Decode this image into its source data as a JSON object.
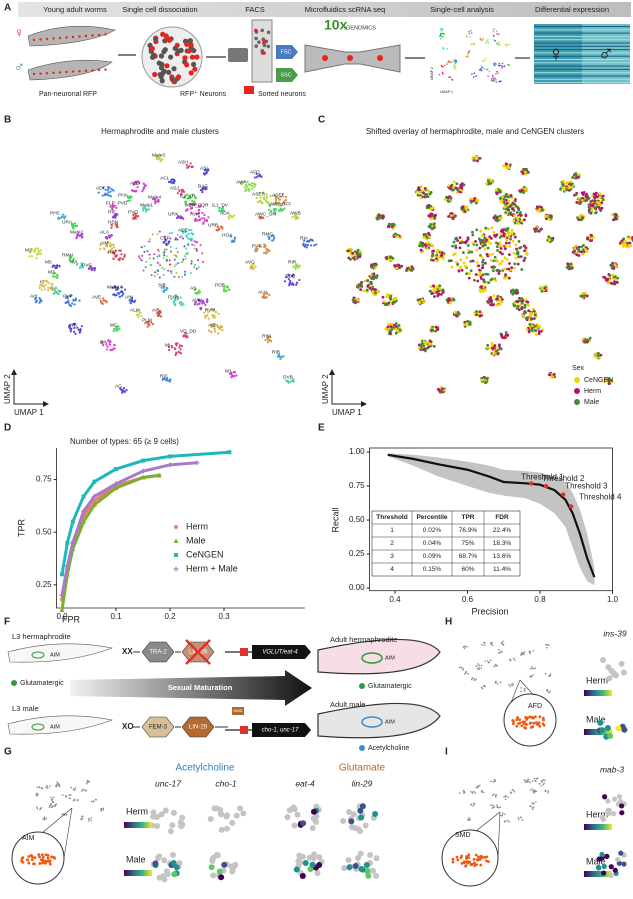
{
  "panel_letters": [
    "A",
    "B",
    "C",
    "D",
    "E",
    "F",
    "G",
    "H",
    "I"
  ],
  "workflow": {
    "steps": [
      "Young adult worms",
      "Single cell dissociation",
      "FACS",
      "Microfluidics scRNA seq",
      "Single-cell analysis",
      "Differential expression"
    ],
    "herm_symbol": "♀",
    "male_symbol": "♂",
    "pan_neuronal": "Pan-neuronal RFP",
    "rfp_neurons": "RFP⁺ Neurons",
    "sorted": "Sorted neurons",
    "fsc": "FSC",
    "ssc": "SSC",
    "tenx": "10x",
    "genomics": "GENOMICS",
    "umap1": "UMAP 1",
    "umap2": "UMAP 2"
  },
  "B": {
    "title": "Hermaphrodite and male clusters",
    "clusters": [
      "Male3",
      "ASH",
      "ASI",
      "AFD",
      "ACL",
      "ASG",
      "ASJ",
      "BAG",
      "AWA",
      "ADF",
      "PHA",
      "Male4",
      "IL2_LR",
      "ASER",
      "ASEL",
      "FLP_PVD",
      "Male1",
      "AQR_PQR",
      "IL1_DV",
      "AWC_OFF",
      "PHC",
      "RIF",
      "PVQ",
      "URX",
      "AVH",
      "ADA",
      "AWC_ON",
      "AWB",
      "URA",
      "HSN",
      "URB",
      "HOA",
      "RMG",
      "Male2",
      "ALA",
      "ADE",
      "CEP",
      "RIA",
      "AIM",
      "PVT",
      "M2",
      "RIP",
      "RMH",
      "AVL",
      "M5",
      "PVC",
      "AVG",
      "RIR",
      "I5",
      "M3",
      "AIA",
      "AIY",
      "Male10",
      "SIB",
      "AS",
      "PDB",
      "SDQ",
      "AUA",
      "PVP",
      "AVE",
      "AIN",
      "PVW",
      "AVM",
      "PVM",
      "AIB",
      "ALM",
      "PLM",
      "VD_DD",
      "MC",
      "AVK",
      "AIZ",
      "RIM",
      "RIV",
      "MI",
      "RIB",
      "RIC",
      "M1",
      "DVB",
      "AG"
    ],
    "umap1": "UMAP 1",
    "umap2": "UMAP 2"
  },
  "C": {
    "title": "Shifted overlay of hermaphrodite, male and CeNGEN clusters",
    "legend_title": "Sex",
    "legend": [
      {
        "name": "CeNGEN",
        "color": "#f2d400"
      },
      {
        "name": "Herm",
        "color": "#b3176b"
      },
      {
        "name": "Male",
        "color": "#3f8a36"
      }
    ],
    "umap1": "UMAP 1",
    "umap2": "UMAP 2"
  },
  "chart_data": [
    {
      "type": "line",
      "annotation": "Number of types: 65 (≥ 9 cells)",
      "x_label": "FPR",
      "y_label": "TPR",
      "xlim": [
        -0.01,
        0.32
      ],
      "ylim": [
        0.14,
        0.9
      ],
      "xticks": [
        {
          "value": 0,
          "label": "0.0"
        },
        0.1,
        0.2,
        0.3
      ],
      "yticks": [
        0.25,
        {
          "value": 0.5,
          "label": "0.50"
        },
        0.75
      ],
      "series": [
        {
          "name": "Herm",
          "color": "#f07a73",
          "marker": "circle",
          "x": [
            0,
            0.01,
            0.02,
            0.04,
            0.06,
            0.1,
            0.15,
            0.18
          ],
          "values": [
            0.18,
            0.33,
            0.45,
            0.58,
            0.65,
            0.72,
            0.76,
            0.77
          ]
        },
        {
          "name": "Male",
          "color": "#7cae2e",
          "marker": "triangle",
          "x": [
            0,
            0.01,
            0.02,
            0.04,
            0.06,
            0.1,
            0.15,
            0.18
          ],
          "values": [
            0.13,
            0.3,
            0.42,
            0.55,
            0.63,
            0.71,
            0.76,
            0.77
          ]
        },
        {
          "name": "CeNGEN",
          "color": "#1fb8b8",
          "marker": "square",
          "x": [
            0,
            0.01,
            0.02,
            0.04,
            0.06,
            0.1,
            0.15,
            0.2,
            0.31
          ],
          "values": [
            0.3,
            0.45,
            0.55,
            0.67,
            0.74,
            0.8,
            0.84,
            0.86,
            0.88
          ]
        },
        {
          "name": "Herm + Male",
          "color": "#a77bc9",
          "marker": "plus",
          "x": [
            0,
            0.01,
            0.02,
            0.04,
            0.06,
            0.1,
            0.15,
            0.2,
            0.25
          ],
          "values": [
            0.2,
            0.34,
            0.45,
            0.6,
            0.67,
            0.73,
            0.79,
            0.82,
            0.83
          ]
        }
      ]
    },
    {
      "type": "ribbon",
      "x_label": "Precision",
      "y_label": "Recall",
      "xlim": [
        0.33,
        1.0
      ],
      "ylim": [
        -0.02,
        1.03
      ],
      "xticks": [
        0.4,
        0.6,
        0.8,
        {
          "value": 1,
          "label": "1.0"
        }
      ],
      "yticks": [
        {
          "value": 0,
          "label": "0.00"
        },
        0.25,
        {
          "value": 0.5,
          "label": "0.50"
        },
        0.75,
        {
          "value": 1,
          "label": "1.00"
        }
      ],
      "series": [
        {
          "color": "#111111",
          "band_color": "#c4c4c4",
          "x": [
            0.38,
            0.45,
            0.52,
            0.6,
            0.66,
            0.7,
            0.76,
            0.8,
            0.84,
            0.87,
            0.89,
            0.91,
            0.93,
            0.95
          ],
          "values": [
            0.98,
            0.95,
            0.91,
            0.87,
            0.82,
            0.78,
            0.77,
            0.76,
            0.72,
            0.65,
            0.55,
            0.4,
            0.22,
            0.08
          ],
          "lower": [
            0.97,
            0.9,
            0.82,
            0.75,
            0.7,
            0.68,
            0.66,
            0.62,
            0.55,
            0.45,
            0.3,
            0.15,
            0.05,
            0.02
          ],
          "upper": [
            0.99,
            0.98,
            0.96,
            0.93,
            0.9,
            0.87,
            0.86,
            0.85,
            0.82,
            0.78,
            0.7,
            0.58,
            0.4,
            0.15
          ]
        }
      ],
      "thresholds": {
        "color": "#e0302a",
        "names": [
          "Threshold 1",
          "Threshold 2",
          "Threshold 3",
          "Threshold 4"
        ],
        "x": [
          0.776,
          0.817,
          0.864,
          0.886
        ],
        "values": [
          0.769,
          0.75,
          0.687,
          0.6
        ]
      },
      "table": {
        "columns": [
          "Threshold",
          "Percentile",
          "TPR",
          "FDR"
        ],
        "rows": [
          [
            "1",
            "0.02%",
            "76.9%",
            "22.4%"
          ],
          [
            "2",
            "0.04%",
            "75%",
            "18.3%"
          ],
          [
            "3",
            "0.09%",
            "68.7%",
            "13.6%"
          ],
          [
            "4",
            "0.15%",
            "60%",
            "11.4%"
          ]
        ]
      }
    }
  ],
  "F": {
    "l3_herm": "L3 hermaphrodite",
    "xx": "XX",
    "tra2": "TRA-2",
    "lin29_herm": "LIN-29",
    "vglut": "VGLUT/eat-4",
    "adult_herm": "Adult hermaphrodite",
    "aim": "AIM",
    "glut": "Glutamatergic",
    "maturation": "Sexual Maturation",
    "l3_male": "L3 male",
    "xo": "XO",
    "fem3": "FEM-3",
    "lin29_male": "LIN-29",
    "dmd": "DMD",
    "cho": "cho-1, unc-17",
    "adult_male": "Adult male",
    "ach": "Acetylcholine",
    "glut_adult": "Glutamatergic"
  },
  "G": {
    "neuron": "AIM",
    "ach": "Acetylcholine",
    "glu": "Glutamate",
    "genes": [
      "unc-17",
      "cho-1",
      "eat-4",
      "lin-29"
    ],
    "herm": "Herm",
    "male": "Male"
  },
  "H": {
    "gene": "ins-39",
    "neuron": "AFD",
    "herm": "Herm",
    "male": "Male"
  },
  "I": {
    "gene": "mab-3",
    "neuron": "SMD",
    "herm": "Herm",
    "male": "Male"
  }
}
